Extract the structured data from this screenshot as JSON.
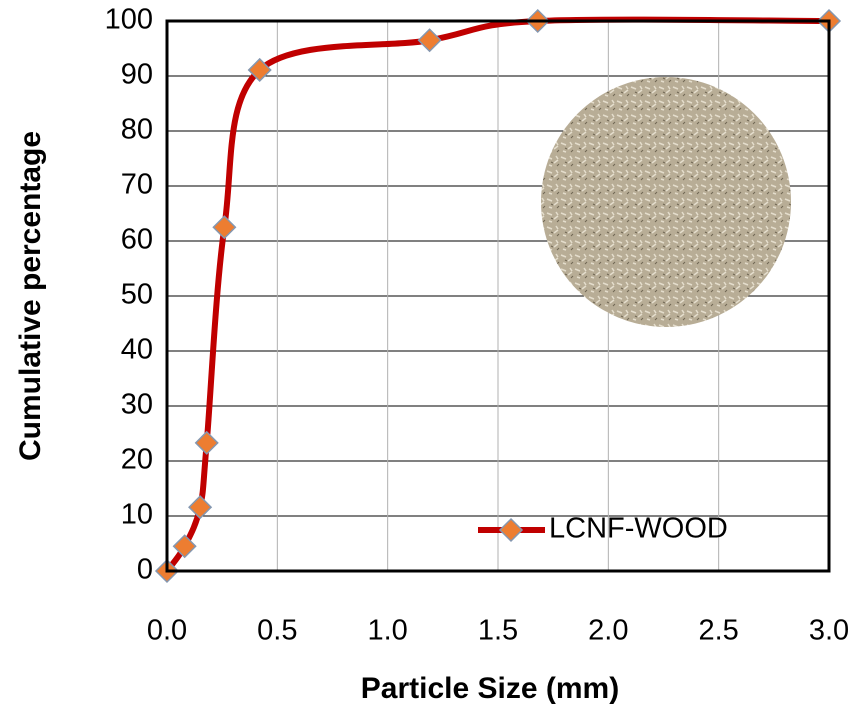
{
  "chart_data": {
    "type": "line",
    "x_label": "Particle Size (mm)",
    "y_label": "Cumulative percentage",
    "x": [
      0,
      0.08,
      0.15,
      0.18,
      0.26,
      0.42,
      1.19,
      1.68,
      3.0
    ],
    "series": [
      {
        "name": "LCNF-WOOD",
        "color": "#c00000",
        "marker_color": "#ed7d31",
        "values": [
          0,
          4.5,
          11.6,
          23.3,
          62.5,
          91.1,
          96.5,
          100,
          100
        ]
      }
    ],
    "xlim": [
      0,
      3.0
    ],
    "ylim": [
      0,
      100
    ],
    "xticks": [
      {
        "value": 0,
        "label": "0.0"
      },
      {
        "value": 0.5,
        "label": "0.5"
      },
      {
        "value": 1,
        "label": "1.0"
      },
      {
        "value": 1.5,
        "label": "1.5"
      },
      {
        "value": 2,
        "label": "2.0"
      },
      {
        "value": 2.5,
        "label": "2.5"
      },
      {
        "value": 3,
        "label": "3.0"
      }
    ],
    "yticks": [
      0,
      10,
      20,
      30,
      40,
      50,
      60,
      70,
      80,
      90,
      100
    ],
    "grid": true,
    "legend": "lower right"
  }
}
